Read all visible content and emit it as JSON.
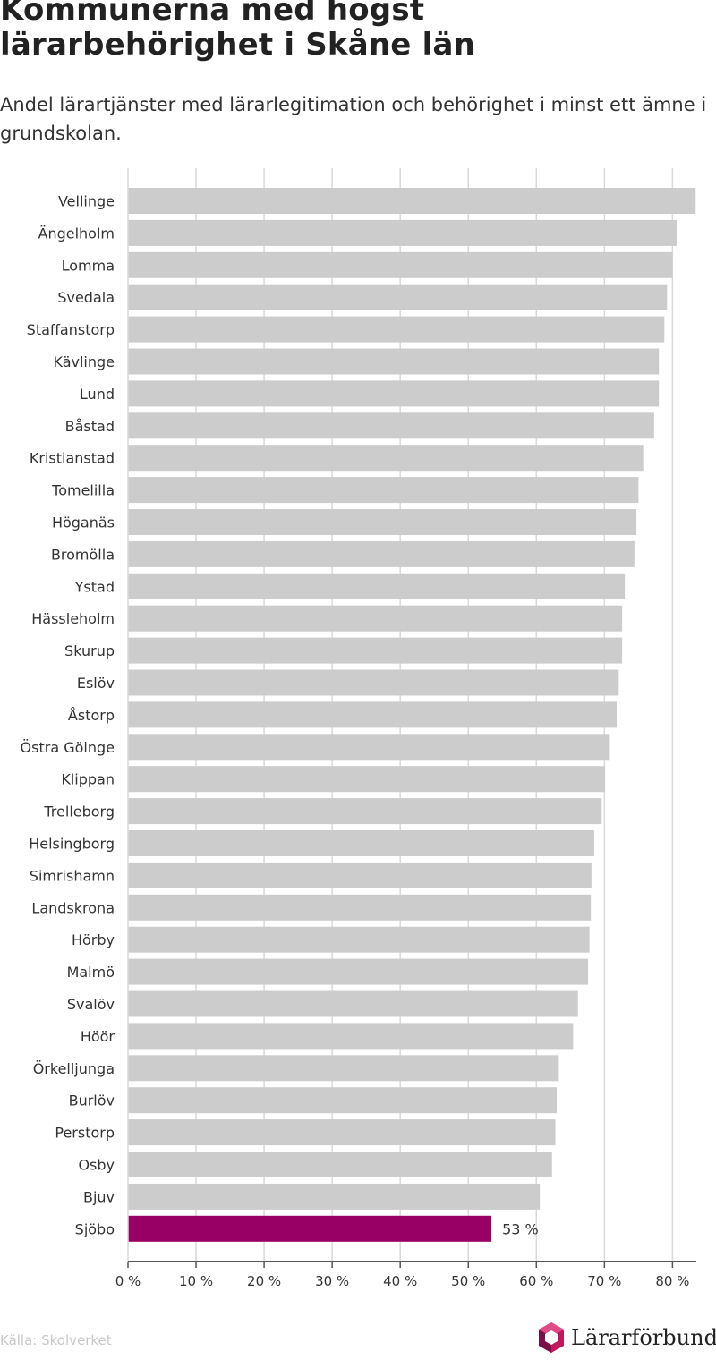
{
  "title": "Kommunerna med högst lärarbehörighet i Skåne län",
  "subtitle": "Andel lärartjänster med lärarlegitimation och behörighet i minst ett ämne i grundskolan.",
  "source": "Källa: Skolverket",
  "logo_text": "Lärarförbundet",
  "colors": {
    "bar": "#cccccc",
    "highlight": "#990066",
    "grid": "#d9d9d9",
    "axis": "#555555"
  },
  "chart_data": {
    "type": "bar",
    "orientation": "horizontal",
    "categories": [
      "Vellinge",
      "Ängelholm",
      "Lomma",
      "Svedala",
      "Staffanstorp",
      "Kävlinge",
      "Lund",
      "Båstad",
      "Kristianstad",
      "Tomelilla",
      "Höganäs",
      "Bromölla",
      "Ystad",
      "Hässleholm",
      "Skurup",
      "Eslöv",
      "Åstorp",
      "Östra Göinge",
      "Klippan",
      "Trelleborg",
      "Helsingborg",
      "Simrishamn",
      "Landskrona",
      "Hörby",
      "Malmö",
      "Svalöv",
      "Höör",
      "Örkelljunga",
      "Burlöv",
      "Perstorp",
      "Osby",
      "Bjuv",
      "Sjöbo"
    ],
    "values": [
      83.4,
      80.6,
      80.0,
      79.2,
      78.8,
      78.0,
      78.0,
      77.3,
      75.7,
      75.0,
      74.7,
      74.4,
      73.0,
      72.6,
      72.6,
      72.1,
      71.8,
      70.8,
      70.1,
      69.6,
      68.5,
      68.1,
      68.0,
      67.8,
      67.6,
      66.1,
      65.4,
      63.3,
      63.0,
      62.8,
      62.3,
      60.5,
      53.4
    ],
    "highlight": {
      "category": "Sjöbo",
      "label": "53 %"
    },
    "xlim": [
      0,
      83.5
    ],
    "xticks": [
      0,
      10,
      20,
      30,
      40,
      50,
      60,
      70,
      80
    ],
    "xtick_labels": [
      "0 %",
      "10 %",
      "20 %",
      "30 %",
      "40 %",
      "50 %",
      "60 %",
      "70 %",
      "80 %"
    ],
    "xlabel": "",
    "ylabel": "",
    "grid": true
  }
}
